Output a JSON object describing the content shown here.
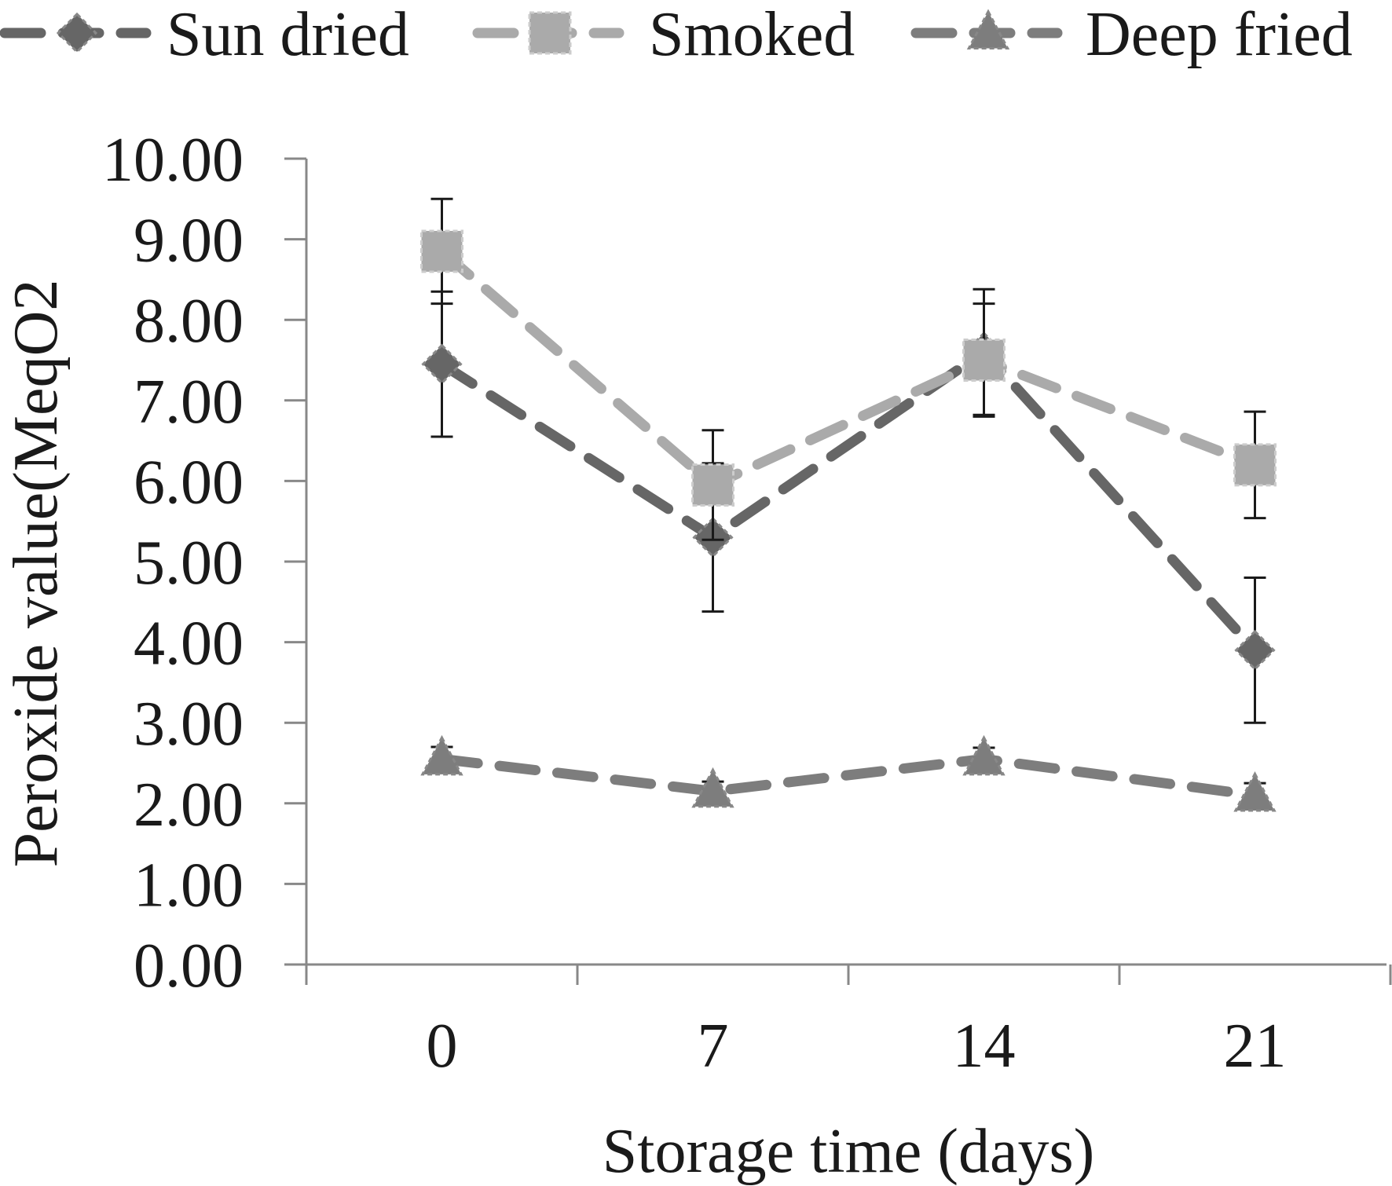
{
  "chart_data": {
    "type": "line",
    "xlabel": "Storage time (days)",
    "ylabel": "Peroxide value(MeqO2",
    "categories": [
      "0",
      "7",
      "14",
      "21"
    ],
    "ylim": [
      0,
      10
    ],
    "yticks": [
      "0.00",
      "1.00",
      "2.00",
      "3.00",
      "4.00",
      "5.00",
      "6.00",
      "7.00",
      "8.00",
      "9.00",
      "10.00"
    ],
    "grid": false,
    "legend_position": "top",
    "series": [
      {
        "name": "Sun dried",
        "values": [
          7.45,
          5.3,
          7.6,
          3.9
        ],
        "error": [
          0.9,
          0.92,
          0.78,
          0.9
        ],
        "marker": "diamond",
        "color": "#666666"
      },
      {
        "name": "Smoked",
        "values": [
          8.85,
          5.95,
          7.5,
          6.2
        ],
        "error": [
          0.65,
          0.68,
          0.7,
          0.66
        ],
        "marker": "square",
        "color": "#aaaaaa"
      },
      {
        "name": "Deep fried",
        "values": [
          2.55,
          2.15,
          2.55,
          2.1
        ],
        "error": [
          0.15,
          0.12,
          0.14,
          0.15
        ],
        "marker": "triangle",
        "color": "#7d7d7d"
      }
    ]
  }
}
